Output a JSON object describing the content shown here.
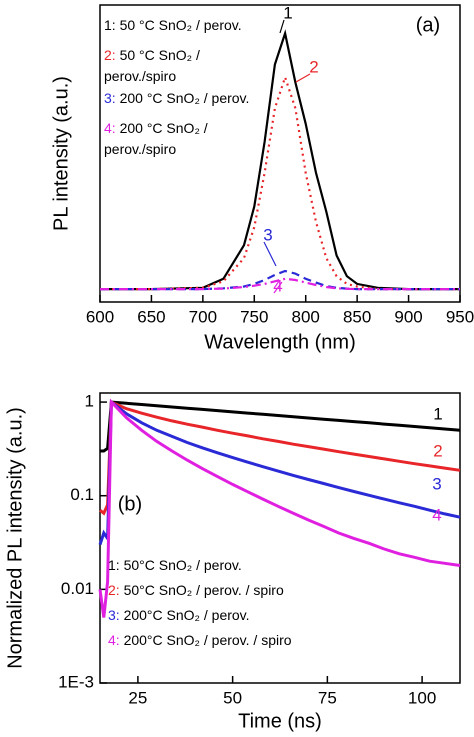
{
  "chart_data": [
    {
      "type": "line",
      "panel_label": "(a)",
      "x_label": "Wavelength (nm)",
      "y_label": "PL intensity (a.u.)",
      "x": [
        600,
        650,
        700,
        720,
        740,
        750,
        760,
        770,
        780,
        790,
        800,
        810,
        820,
        830,
        840,
        850,
        870,
        900,
        950
      ],
      "xlim": [
        600,
        950
      ],
      "xticks": [
        600,
        650,
        700,
        750,
        800,
        850,
        900,
        950
      ],
      "ylim": [
        -0.05,
        1.1
      ],
      "series": [
        {
          "name": "1: 50 °C SnO₂ / perov.",
          "label": "1",
          "color": "#000000",
          "style": "solid",
          "values": [
            0,
            0,
            0.005,
            0.04,
            0.17,
            0.32,
            0.57,
            0.87,
            0.99,
            0.8,
            0.64,
            0.45,
            0.3,
            0.13,
            0.05,
            0.02,
            0.005,
            0,
            0
          ]
        },
        {
          "name": "2: 50 °C SnO₂ / perov./spiro",
          "label": "2",
          "color": "#e8262a",
          "style": "dotted",
          "values": [
            0,
            0,
            0.005,
            0.03,
            0.12,
            0.24,
            0.45,
            0.7,
            0.82,
            0.7,
            0.45,
            0.26,
            0.12,
            0.05,
            0.02,
            0.01,
            0,
            0,
            0
          ]
        },
        {
          "name": "3: 200 °C SnO₂ / perov.",
          "label": "3",
          "color": "#2a2ad6",
          "style": "dashed",
          "values": [
            0,
            0,
            0,
            0.003,
            0.01,
            0.02,
            0.035,
            0.055,
            0.07,
            0.06,
            0.04,
            0.025,
            0.012,
            0.005,
            0.002,
            0,
            0,
            0,
            0
          ]
        },
        {
          "name": "4: 200 °C SnO₂ / perov./spiro",
          "label": "4",
          "color": "#e020e0",
          "style": "dashdot",
          "values": [
            0,
            0,
            0,
            0.002,
            0.008,
            0.013,
            0.02,
            0.03,
            0.04,
            0.035,
            0.025,
            0.016,
            0.008,
            0.003,
            0.001,
            0,
            0,
            0,
            0
          ]
        }
      ]
    },
    {
      "type": "line",
      "panel_label": "(b)",
      "x_label": "Time (ns)",
      "y_label": "Normalized PL intensity (a.u.)",
      "log_y": true,
      "x": [
        15,
        16,
        17,
        18,
        22,
        26,
        30,
        34,
        38,
        42,
        46,
        50,
        54,
        58,
        62,
        66,
        70,
        74,
        78,
        82,
        86,
        90,
        94,
        98,
        102,
        106,
        110
      ],
      "xlim": [
        15,
        110
      ],
      "xticks": [
        25,
        50,
        75,
        100
      ],
      "ylim": [
        0.001,
        1.25
      ],
      "yticks": [
        1,
        0.1,
        0.01,
        {
          "value": 0.001,
          "label": "1E-3"
        }
      ],
      "series": [
        {
          "name": "1: 50°C SnO₂ / perov.",
          "label": "1",
          "color": "#000000",
          "style": "solid",
          "values": [
            0.3,
            0.3,
            0.32,
            1,
            0.97,
            0.942,
            0.914,
            0.887,
            0.86,
            0.835,
            0.81,
            0.786,
            0.763,
            0.74,
            0.718,
            0.697,
            0.676,
            0.656,
            0.637,
            0.618,
            0.6,
            0.582,
            0.565,
            0.548,
            0.532,
            0.516,
            0.501
          ]
        },
        {
          "name": "2: 50°C SnO₂ / perov. / spiro",
          "label": "2",
          "color": "#e8262a",
          "style": "solid",
          "values": [
            0.07,
            0.065,
            0.08,
            1,
            0.85,
            0.76,
            0.69,
            0.63,
            0.58,
            0.54,
            0.5,
            0.465,
            0.435,
            0.405,
            0.38,
            0.355,
            0.335,
            0.315,
            0.295,
            0.278,
            0.262,
            0.247,
            0.233,
            0.22,
            0.208,
            0.197,
            0.187
          ]
        },
        {
          "name": "3: 200°C SnO₂ / perov.",
          "label": "3",
          "color": "#2a2ad6",
          "style": "solid",
          "values": [
            0.03,
            0.04,
            0.035,
            1,
            0.75,
            0.6,
            0.5,
            0.43,
            0.37,
            0.325,
            0.287,
            0.255,
            0.228,
            0.204,
            0.183,
            0.165,
            0.149,
            0.135,
            0.122,
            0.111,
            0.101,
            0.092,
            0.084,
            0.077,
            0.07,
            0.064,
            0.059
          ]
        },
        {
          "name": "4: 200°C SnO₂ / perov. / spiro",
          "label": "4",
          "color": "#e020e0",
          "style": "solid",
          "values": [
            0.01,
            0.005,
            0.012,
            1,
            0.68,
            0.5,
            0.38,
            0.3,
            0.24,
            0.195,
            0.16,
            0.132,
            0.11,
            0.092,
            0.077,
            0.065,
            0.055,
            0.047,
            0.04,
            0.035,
            0.031,
            0.027,
            0.024,
            0.022,
            0.02,
            0.019,
            0.018
          ]
        }
      ]
    }
  ]
}
